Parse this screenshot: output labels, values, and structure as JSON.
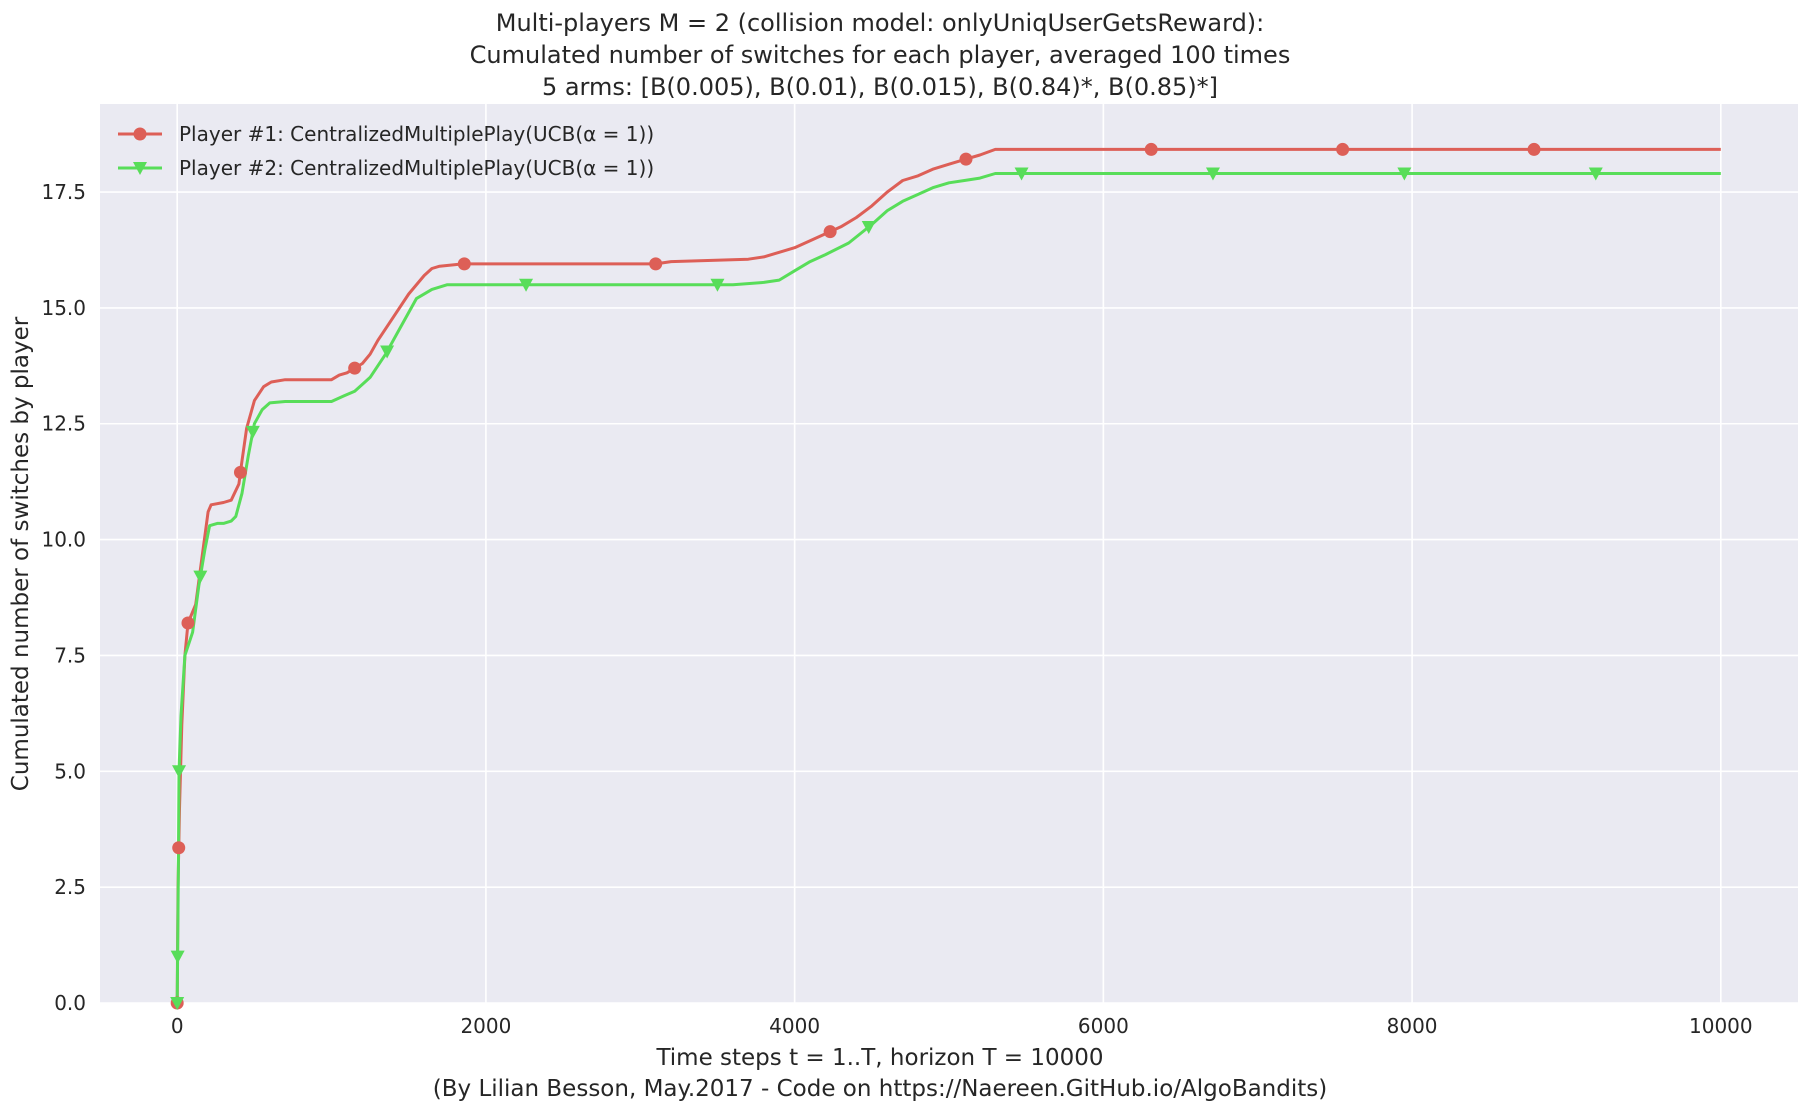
{
  "title_lines": [
    "Multi-players M = 2 (collision model: onlyUniqUserGetsReward):",
    "Cumulated number of switches for each player, averaged 100 times",
    "5 arms: [B(0.005), B(0.01), B(0.015), B(0.84)*, B(0.85)*]"
  ],
  "xlabel": "Time steps t = 1..T, horizon T = 10000",
  "footer": "(By Lilian Besson, May.2017 - Code on https://Naereen.GitHub.io/AlgoBandits)",
  "ylabel": "Cumulated number of switches by player",
  "colors": {
    "background": "#eaeaf2",
    "grid": "#ffffff",
    "player1": "#dd5f57",
    "player2": "#58dd59"
  },
  "chart_data": {
    "type": "line",
    "xlim": [
      -500,
      10500
    ],
    "ylim": [
      0,
      19.4
    ],
    "xticks": [
      0,
      2000,
      4000,
      6000,
      8000,
      10000
    ],
    "xtick_labels": [
      "0",
      "2000",
      "4000",
      "6000",
      "8000",
      "10000"
    ],
    "yticks": [
      0,
      2.5,
      5,
      7.5,
      10,
      12.5,
      15,
      17.5
    ],
    "ytick_labels": [
      "0.0",
      "2.5",
      "5.0",
      "7.5",
      "10.0",
      "12.5",
      "15.0",
      "17.5"
    ],
    "grid": true,
    "legend_position": "top-left",
    "series": [
      {
        "name": "Player #1: CentralizedMultiplePlay(UCB(α = 1))",
        "color": "#dd5f57",
        "marker": "circle",
        "points": [
          [
            0,
            0
          ],
          [
            5,
            2.5
          ],
          [
            15,
            4.2
          ],
          [
            30,
            6
          ],
          [
            50,
            7.5
          ],
          [
            70,
            8.2
          ],
          [
            120,
            8.6
          ],
          [
            160,
            9.6
          ],
          [
            200,
            10.6
          ],
          [
            220,
            10.75
          ],
          [
            300,
            10.8
          ],
          [
            350,
            10.85
          ],
          [
            400,
            11.2
          ],
          [
            420,
            11.7
          ],
          [
            450,
            12.4
          ],
          [
            500,
            13
          ],
          [
            560,
            13.3
          ],
          [
            610,
            13.4
          ],
          [
            700,
            13.45
          ],
          [
            1000,
            13.45
          ],
          [
            1050,
            13.55
          ],
          [
            1100,
            13.6
          ],
          [
            1150,
            13.7
          ],
          [
            1200,
            13.8
          ],
          [
            1250,
            14
          ],
          [
            1300,
            14.3
          ],
          [
            1400,
            14.8
          ],
          [
            1500,
            15.3
          ],
          [
            1600,
            15.7
          ],
          [
            1650,
            15.85
          ],
          [
            1700,
            15.9
          ],
          [
            1850,
            15.95
          ],
          [
            2000,
            15.95
          ],
          [
            3100,
            15.95
          ],
          [
            3200,
            16
          ],
          [
            3700,
            16.05
          ],
          [
            3800,
            16.1
          ],
          [
            3900,
            16.2
          ],
          [
            4000,
            16.3
          ],
          [
            4100,
            16.45
          ],
          [
            4200,
            16.6
          ],
          [
            4300,
            16.75
          ],
          [
            4400,
            16.95
          ],
          [
            4500,
            17.2
          ],
          [
            4600,
            17.5
          ],
          [
            4700,
            17.75
          ],
          [
            4800,
            17.85
          ],
          [
            4900,
            18
          ],
          [
            5000,
            18.1
          ],
          [
            5100,
            18.2
          ],
          [
            5200,
            18.3
          ],
          [
            5300,
            18.42
          ],
          [
            10000,
            18.42
          ]
        ],
        "marker_x": [
          0,
          10,
          70,
          410,
          1150,
          1860,
          3100,
          4230,
          5110,
          6310,
          7550,
          8790
        ]
      },
      {
        "name": "Player #2: CentralizedMultiplePlay(UCB(α = 1))",
        "color": "#58dd59",
        "marker": "triangle-down",
        "points": [
          [
            0,
            0
          ],
          [
            3,
            1
          ],
          [
            8,
            3
          ],
          [
            12,
            5
          ],
          [
            25,
            6.2
          ],
          [
            50,
            7.5
          ],
          [
            100,
            8
          ],
          [
            140,
            9
          ],
          [
            180,
            9.8
          ],
          [
            210,
            10.3
          ],
          [
            260,
            10.35
          ],
          [
            300,
            10.35
          ],
          [
            350,
            10.4
          ],
          [
            380,
            10.5
          ],
          [
            420,
            11
          ],
          [
            460,
            11.8
          ],
          [
            500,
            12.5
          ],
          [
            550,
            12.8
          ],
          [
            600,
            12.95
          ],
          [
            700,
            12.98
          ],
          [
            1000,
            12.98
          ],
          [
            1080,
            13.1
          ],
          [
            1150,
            13.2
          ],
          [
            1250,
            13.5
          ],
          [
            1350,
            14
          ],
          [
            1450,
            14.6
          ],
          [
            1550,
            15.2
          ],
          [
            1650,
            15.4
          ],
          [
            1750,
            15.5
          ],
          [
            1850,
            15.5
          ],
          [
            3600,
            15.5
          ],
          [
            3800,
            15.55
          ],
          [
            3900,
            15.6
          ],
          [
            4000,
            15.8
          ],
          [
            4100,
            16
          ],
          [
            4200,
            16.15
          ],
          [
            4350,
            16.4
          ],
          [
            4500,
            16.8
          ],
          [
            4600,
            17.1
          ],
          [
            4700,
            17.3
          ],
          [
            4800,
            17.45
          ],
          [
            4900,
            17.6
          ],
          [
            5000,
            17.7
          ],
          [
            5100,
            17.75
          ],
          [
            5200,
            17.8
          ],
          [
            5300,
            17.9
          ],
          [
            10000,
            17.9
          ]
        ],
        "marker_x": [
          0,
          3,
          12,
          150,
          490,
          1360,
          2260,
          3500,
          4480,
          5470,
          6710,
          7950,
          9190
        ]
      }
    ]
  }
}
